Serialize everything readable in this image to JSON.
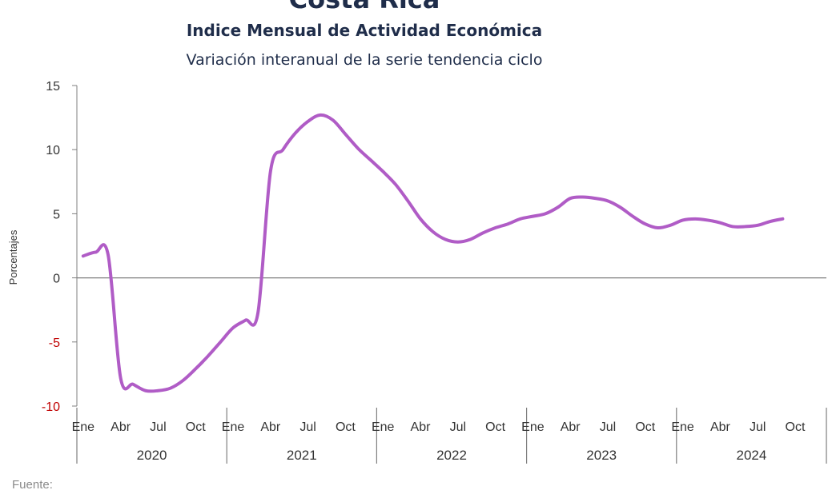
{
  "chart_data": {
    "type": "line",
    "title": "Costa Rica",
    "subtitle": "Indice Mensual de  Actividad Económica",
    "subtitle2": "Variación interanual de la serie tendencia ciclo",
    "ylabel": "Porcentajes",
    "xlabel": "",
    "ylim": [
      -10,
      15
    ],
    "yticks": [
      "15",
      "10",
      "5",
      "0",
      "-5",
      "-10"
    ],
    "month_labels": [
      "Ene",
      "Abr",
      "Jul",
      "Oct"
    ],
    "years": [
      "2020",
      "2021",
      "2022",
      "2023",
      "2024"
    ],
    "grid": false,
    "legend": "none",
    "line_color": "#b05cc6",
    "negative_tick_color": "#c00000",
    "series": [
      {
        "values": [
          1.7,
          2.0,
          1.8,
          -7.8,
          -8.3,
          -8.8,
          -8.8,
          -8.6,
          -8.0,
          -7.1,
          -6.1,
          -5.0,
          -3.9,
          -3.3,
          -2.7,
          8.3,
          10.0,
          11.3,
          12.2,
          12.7,
          12.3,
          11.2,
          10.1,
          9.2,
          8.3,
          7.3,
          6.0,
          4.6,
          3.6,
          3.0,
          2.8,
          3.0,
          3.5,
          3.9,
          4.2,
          4.6,
          4.8,
          5.0,
          5.5,
          6.2,
          6.3,
          6.2,
          6.0,
          5.5,
          4.8,
          4.2,
          3.9,
          4.1,
          4.5,
          4.6,
          4.5,
          4.3,
          4.0,
          4.0,
          4.1,
          4.4,
          4.6
        ]
      }
    ],
    "source": "Fuente:"
  }
}
